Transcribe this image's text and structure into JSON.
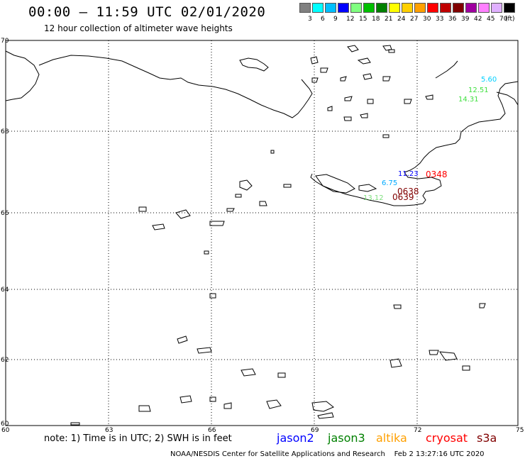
{
  "header": {
    "title": "00:00 – 11:59 UTC 02/01/2020",
    "subtitle": "12 hour collection of altimeter wave heights"
  },
  "legend": {
    "colors": [
      "#808080",
      "#00ffff",
      "#00bfff",
      "#0000ff",
      "#80ff80",
      "#00c000",
      "#008000",
      "#ffff00",
      "#ffd000",
      "#ffa000",
      "#ff0000",
      "#c00000",
      "#800000",
      "#a000a0",
      "#ff80ff",
      "#e0b0ff",
      "#000000"
    ],
    "ticks": [
      "3",
      "6",
      "9",
      "12",
      "15",
      "18",
      "21",
      "24",
      "27",
      "30",
      "33",
      "36",
      "39",
      "42",
      "45",
      "70"
    ],
    "unit": "(ft)"
  },
  "axes": {
    "lat_labels": [
      "70",
      "68",
      "66",
      "64",
      "62",
      "60"
    ],
    "lon_labels": [
      "60",
      "63",
      "66",
      "69",
      "72",
      "75"
    ]
  },
  "wave_labels": [
    {
      "text": "5.60",
      "color": "#00d0ff"
    },
    {
      "text": "12.51",
      "color": "#40e040"
    },
    {
      "text": "14.31",
      "color": "#40e040"
    },
    {
      "text": "11.23",
      "color": "#0000ff"
    },
    {
      "text": "0348",
      "color": "#ff0000"
    },
    {
      "text": "6.75",
      "color": "#00aaff"
    },
    {
      "text": "0638",
      "color": "#800000"
    },
    {
      "text": "13.12",
      "color": "#80e080"
    },
    {
      "text": "0639",
      "color": "#800000"
    }
  ],
  "note": "note: 1) Time is in UTC; 2) SWH is in feet",
  "satellites": [
    {
      "name": "jason2",
      "color": "#0000ff"
    },
    {
      "name": "jason3",
      "color": "#008000"
    },
    {
      "name": "altika",
      "color": "#ffa000"
    },
    {
      "name": "cryosat",
      "color": "#ff0000"
    },
    {
      "name": "s3a",
      "color": "#800000"
    }
  ],
  "footer": {
    "agency": "NOAA/NESDIS Center for Satellite Applications and Research",
    "timestamp": "Feb  2 13:27:16 UTC 2020"
  }
}
